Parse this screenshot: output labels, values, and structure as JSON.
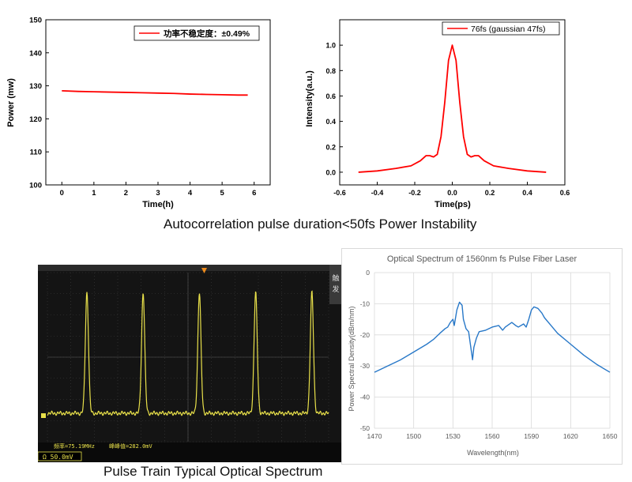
{
  "captions": {
    "top": "Autocorrelation pulse duration<50fs Power Instability",
    "bottom": "Pulse Train Typical Optical Spectrum"
  },
  "chart_data": [
    {
      "type": "line",
      "title": "",
      "xlabel": "Time(h)",
      "ylabel": "Power (mw)",
      "xlim": [
        -0.5,
        6.5
      ],
      "ylim": [
        100,
        150
      ],
      "xticks": [
        0,
        1,
        2,
        3,
        4,
        5,
        6
      ],
      "yticks": [
        100,
        110,
        120,
        130,
        140,
        150
      ],
      "legend_position": "top-right",
      "series": [
        {
          "name": "功率不稳定度：±0.49%",
          "color": "#ff0000",
          "x": [
            0,
            0.5,
            1,
            1.5,
            2,
            2.5,
            3,
            3.5,
            4,
            4.5,
            5,
            5.5,
            5.8
          ],
          "y": [
            128.5,
            128.3,
            128.2,
            128.1,
            128.0,
            127.9,
            127.8,
            127.7,
            127.5,
            127.4,
            127.3,
            127.2,
            127.2
          ]
        }
      ]
    },
    {
      "type": "line",
      "title": "",
      "xlabel": "Time(ps)",
      "ylabel": "Intensity(a.u.)",
      "xlim": [
        -0.6,
        0.6
      ],
      "ylim": [
        -0.1,
        1.2
      ],
      "xticks": [
        -0.6,
        -0.4,
        -0.2,
        0.0,
        0.2,
        0.4,
        0.6
      ],
      "yticks": [
        0.0,
        0.2,
        0.4,
        0.6,
        0.8,
        1.0
      ],
      "legend_position": "top-right",
      "series": [
        {
          "name": "76fs (gaussian 47fs)",
          "color": "#ff0000",
          "x": [
            -0.5,
            -0.4,
            -0.3,
            -0.22,
            -0.17,
            -0.14,
            -0.12,
            -0.1,
            -0.08,
            -0.06,
            -0.04,
            -0.02,
            0,
            0.02,
            0.04,
            0.06,
            0.08,
            0.1,
            0.12,
            0.14,
            0.17,
            0.22,
            0.3,
            0.4,
            0.5
          ],
          "y": [
            0.0,
            0.01,
            0.03,
            0.05,
            0.09,
            0.13,
            0.13,
            0.12,
            0.14,
            0.28,
            0.55,
            0.88,
            1.0,
            0.88,
            0.55,
            0.28,
            0.14,
            0.12,
            0.13,
            0.13,
            0.09,
            0.05,
            0.03,
            0.01,
            0.0
          ]
        }
      ]
    },
    {
      "type": "line",
      "title": "",
      "xlabel": "",
      "ylabel": "",
      "grid": true,
      "series": [
        {
          "color": "#e8e04a",
          "peaks": 5
        }
      ],
      "readouts": {
        "frequency": "频率=75.19MHz",
        "peak_to_peak": "峰峰值=282.0mV",
        "channel_scale": "Ω 50.0mV",
        "side_labels": [
          "触",
          "发"
        ]
      }
    },
    {
      "type": "line",
      "title": "Optical Spectrum of 1560nm fs Pulse Fiber Laser",
      "xlabel": "Wavelength(nm)",
      "ylabel": "Power Spectral Density(dBm/nm)",
      "xlim": [
        1470,
        1650
      ],
      "ylim": [
        -50,
        0
      ],
      "xticks": [
        1470,
        1500,
        1530,
        1560,
        1590,
        1620,
        1650
      ],
      "yticks": [
        0,
        -10,
        -20,
        -30,
        -40,
        -50
      ],
      "grid": true,
      "series": [
        {
          "color": "#2878c8",
          "x": [
            1470,
            1480,
            1490,
            1500,
            1510,
            1515,
            1520,
            1524,
            1526,
            1528,
            1530,
            1531,
            1533,
            1535,
            1537,
            1538,
            1540,
            1542,
            1544,
            1545,
            1546,
            1548,
            1550,
            1555,
            1560,
            1565,
            1568,
            1570,
            1575,
            1578,
            1580,
            1584,
            1586,
            1588,
            1590,
            1592,
            1595,
            1598,
            1600,
            1605,
            1610,
            1620,
            1630,
            1640,
            1650
          ],
          "y": [
            -32,
            -30,
            -28,
            -25.5,
            -23,
            -21.5,
            -19.5,
            -18,
            -17.5,
            -16,
            -15,
            -17,
            -12,
            -9.5,
            -10.5,
            -15,
            -18,
            -19,
            -25,
            -28,
            -24,
            -21,
            -19,
            -18.5,
            -17.5,
            -17,
            -18.5,
            -17.5,
            -16,
            -17,
            -17.5,
            -16.5,
            -17.5,
            -15,
            -12,
            -11,
            -11.5,
            -13,
            -14.5,
            -17,
            -19.5,
            -23,
            -26.5,
            -29.5,
            -32
          ]
        }
      ]
    }
  ]
}
